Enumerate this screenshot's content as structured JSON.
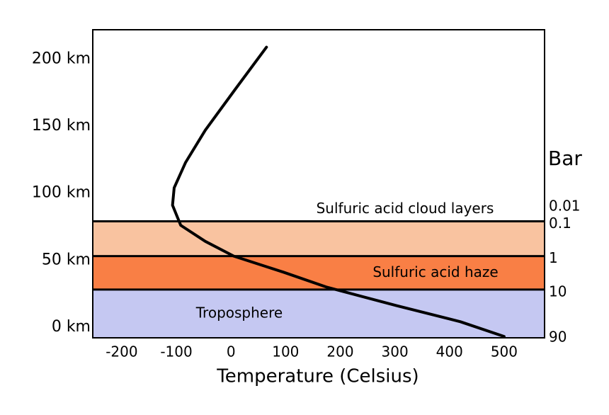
{
  "chart_data": {
    "type": "line",
    "xlabel": "Temperature (Celsius)",
    "x": [
      65,
      5,
      -47,
      -83,
      -104,
      -107,
      -92,
      -47,
      5,
      96,
      174,
      303,
      420,
      500
    ],
    "values": [
      209,
      176,
      147,
      123,
      104,
      91,
      76,
      64,
      53,
      41,
      30,
      16,
      4,
      -7
    ],
    "color": "#000000",
    "xlim": [
      -253,
      574
    ],
    "xticks": [
      -200,
      -100,
      0,
      100,
      200,
      300,
      400,
      500
    ],
    "ylim": [
      -8,
      222
    ],
    "yticks": [
      {
        "value": 0,
        "label": "0 km"
      },
      {
        "value": 50,
        "label": "50 km"
      },
      {
        "value": 100,
        "label": "100 km"
      },
      {
        "value": 150,
        "label": "150 km"
      },
      {
        "value": 200,
        "label": "200 km"
      }
    ],
    "pressure_label": "Bar",
    "pressure_ticks": [
      {
        "pressure": 0.01,
        "altitude": 92
      },
      {
        "pressure": 0.1,
        "altitude": 79
      },
      {
        "pressure": 1,
        "altitude": 53
      },
      {
        "pressure": 10,
        "altitude": 28
      },
      {
        "pressure": 90,
        "altitude": -6
      }
    ],
    "regions": [
      {
        "label": "Sulfuric acid cloud layers",
        "bottom": 53,
        "top": 79,
        "color": "#f9c3a0"
      },
      {
        "label": "Sulfuric acid haze",
        "bottom": 28,
        "top": 53,
        "color": "#f97f45"
      },
      {
        "label": "Troposphere",
        "bottom": -8,
        "top": 28,
        "color": "#c5c8f2"
      }
    ]
  }
}
